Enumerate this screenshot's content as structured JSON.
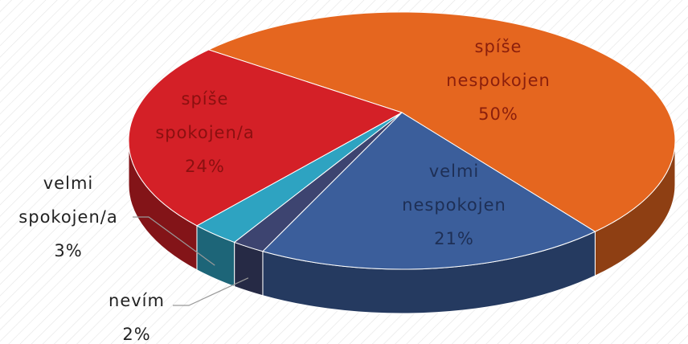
{
  "chart_data": {
    "type": "pie3d",
    "categories": [
      "spíše nespokojen",
      "velmi nespokojen",
      "nevím",
      "velmi spokojen/a",
      "spíše spokojen/a"
    ],
    "values": [
      50,
      21,
      2,
      3,
      24
    ],
    "value_labels": [
      "50%",
      "21%",
      "2%",
      "3%",
      "24%"
    ],
    "colors": [
      "#e5661f",
      "#3b5e9b",
      "#3d4470",
      "#2ea3c1",
      "#d42027"
    ]
  }
}
